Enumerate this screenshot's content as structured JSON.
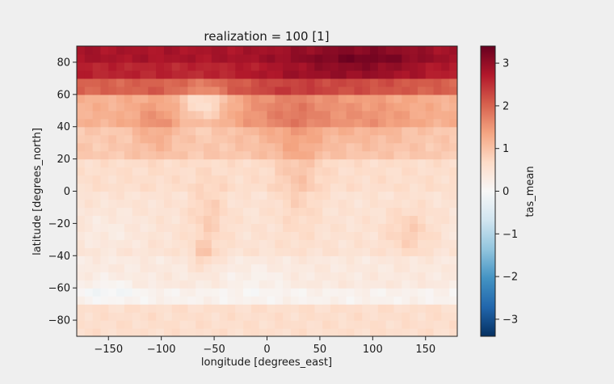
{
  "chart_data": {
    "type": "heatmap",
    "title": "realization = 100 [1]",
    "xlabel": "longitude [degrees_east]",
    "ylabel": "latitude [degrees_north]",
    "xlim": [
      -180,
      180
    ],
    "ylim": [
      -90,
      90
    ],
    "xticks": [
      -150,
      -100,
      -50,
      0,
      50,
      100,
      150
    ],
    "yticks": [
      -80,
      -60,
      -40,
      -20,
      0,
      20,
      40,
      60,
      80
    ],
    "xtick_labels": [
      "−150",
      "−100",
      "−50",
      "0",
      "50",
      "100",
      "150"
    ],
    "ytick_labels": [
      "−80",
      "−60",
      "−40",
      "−20",
      "0",
      "20",
      "40",
      "60",
      "80"
    ],
    "colorbar": {
      "label": "tas_mean",
      "cmap": "RdBu_r",
      "vmin": -3.4,
      "vmax": 3.4,
      "ticks": [
        -3,
        -2,
        -1,
        0,
        1,
        2,
        3
      ],
      "tick_labels": [
        "−3",
        "−2",
        "−1",
        "0",
        "1",
        "2",
        "3"
      ]
    },
    "grid": false,
    "lat_bands": [
      {
        "lat_range": [
          80,
          90
        ],
        "approx_value": 2.8
      },
      {
        "lat_range": [
          70,
          80
        ],
        "approx_value": 2.6
      },
      {
        "lat_range": [
          60,
          70
        ],
        "approx_value": 2.0
      },
      {
        "lat_range": [
          40,
          60
        ],
        "approx_value": 1.2
      },
      {
        "lat_range": [
          20,
          40
        ],
        "approx_value": 0.9
      },
      {
        "lat_range": [
          0,
          20
        ],
        "approx_value": 0.6
      },
      {
        "lat_range": [
          -20,
          0
        ],
        "approx_value": 0.5
      },
      {
        "lat_range": [
          -40,
          -20
        ],
        "approx_value": 0.5
      },
      {
        "lat_range": [
          -60,
          -40
        ],
        "approx_value": 0.35
      },
      {
        "lat_range": [
          -70,
          -60
        ],
        "approx_value": 0.15
      },
      {
        "lat_range": [
          -90,
          -70
        ],
        "approx_value": 0.6
      }
    ]
  }
}
